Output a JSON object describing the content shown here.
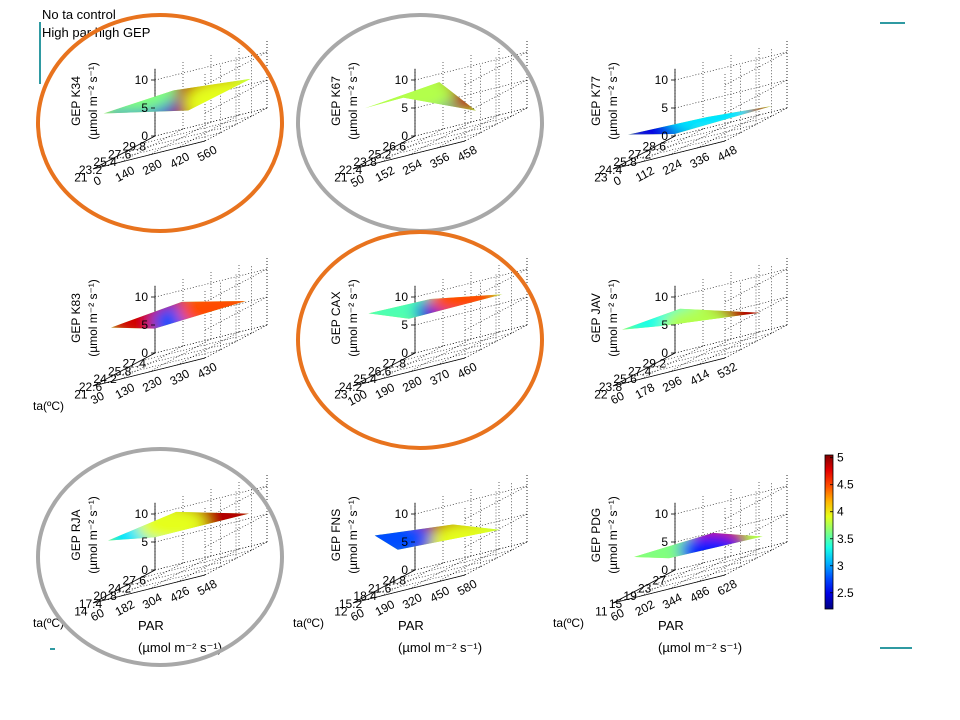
{
  "annotations": {
    "line1": "No ta control",
    "line2": "High par high GEP"
  },
  "colors": {
    "orange_circle": "#e8731e",
    "gray_circle": "#a8a8a8",
    "accent_line": "#2f9aa2"
  },
  "chart_data": [
    {
      "type": "surface3d",
      "site": "K34",
      "zlabel": "GEP K34",
      "zunit": "(µmol m⁻² s⁻¹)",
      "zlim": [
        0,
        10
      ],
      "zticks": [
        "0",
        "5",
        "10"
      ],
      "x_ticks": [
        "29.8",
        "27.6",
        "25.4",
        "23.2",
        "21"
      ],
      "y_ticks": [
        "0",
        "140",
        "280",
        "420",
        "560"
      ],
      "xlabel": "",
      "ylabel": "",
      "circle": "orange"
    },
    {
      "type": "surface3d",
      "site": "K67",
      "zlabel": "GEP K67",
      "zunit": "(µmol m⁻² s⁻¹)",
      "zlim": [
        0,
        10
      ],
      "zticks": [
        "0",
        "5",
        "10"
      ],
      "x_ticks": [
        "26.6",
        "25.2",
        "23.8",
        "22.4",
        "21"
      ],
      "y_ticks": [
        "50",
        "152",
        "254",
        "356",
        "458"
      ],
      "xlabel": "",
      "ylabel": "",
      "circle": "gray"
    },
    {
      "type": "surface3d",
      "site": "K77",
      "zlabel": "GEP K77",
      "zunit": "(µmol m⁻² s⁻¹)",
      "zlim": [
        0,
        10
      ],
      "zticks": [
        "0",
        "5",
        "10"
      ],
      "x_ticks": [
        "28.6",
        "27.2",
        "25.8",
        "24.4",
        "23"
      ],
      "y_ticks": [
        "0",
        "112",
        "224",
        "336",
        "448"
      ],
      "xlabel": "",
      "ylabel": "",
      "circle": "none"
    },
    {
      "type": "surface3d",
      "site": "K83",
      "zlabel": "GEP K83",
      "zunit": "(µmol m⁻² s⁻¹)",
      "zlim": [
        0,
        10
      ],
      "zticks": [
        "0",
        "5",
        "10"
      ],
      "x_ticks": [
        "27.4",
        "25.8",
        "24.2",
        "22.6",
        "21"
      ],
      "y_ticks": [
        "30",
        "130",
        "230",
        "330",
        "430"
      ],
      "xlabel": "ta(ºC)",
      "ylabel": "",
      "circle": "none"
    },
    {
      "type": "surface3d",
      "site": "CAX",
      "zlabel": "GEP CAX",
      "zunit": "(µmol m⁻² s⁻¹)",
      "zlim": [
        0,
        10
      ],
      "zticks": [
        "0",
        "5",
        "10"
      ],
      "x_ticks": [
        "27.8",
        "26.6",
        "25.4",
        "24.2",
        "23"
      ],
      "y_ticks": [
        "100",
        "190",
        "280",
        "370",
        "460"
      ],
      "xlabel": "",
      "ylabel": "",
      "circle": "orange"
    },
    {
      "type": "surface3d",
      "site": "JAV",
      "zlabel": "GEP JAV",
      "zunit": "(µmol m⁻² s⁻¹)",
      "zlim": [
        0,
        10
      ],
      "zticks": [
        "0",
        "5",
        "10"
      ],
      "x_ticks": [
        "29.2",
        "27.4",
        "25.6",
        "23.8",
        "22"
      ],
      "y_ticks": [
        "60",
        "178",
        "296",
        "414",
        "532"
      ],
      "xlabel": "",
      "ylabel": "",
      "circle": "none"
    },
    {
      "type": "surface3d",
      "site": "RJA",
      "zlabel": "GEP RJA",
      "zunit": "(µmol m⁻² s⁻¹)",
      "zlim": [
        0,
        10
      ],
      "zticks": [
        "0",
        "5",
        "10"
      ],
      "x_ticks": [
        "27.6",
        "24.2",
        "20.8",
        "17.4",
        "14"
      ],
      "y_ticks": [
        "60",
        "182",
        "304",
        "426",
        "548"
      ],
      "xlabel": "ta(ºC)",
      "ylabel": "PAR",
      "yunit": "(µmol m⁻² s⁻¹)",
      "circle": "gray"
    },
    {
      "type": "surface3d",
      "site": "FNS",
      "zlabel": "GEP FNS",
      "zunit": "(µmol m⁻² s⁻¹)",
      "zlim": [
        0,
        10
      ],
      "zticks": [
        "0",
        "5",
        "10"
      ],
      "x_ticks": [
        "24.8",
        "21.6",
        "18.4",
        "15.2",
        "12"
      ],
      "y_ticks": [
        "60",
        "190",
        "320",
        "450",
        "580"
      ],
      "xlabel": "ta(ºC)",
      "ylabel": "PAR",
      "yunit": "(µmol m⁻² s⁻¹)",
      "circle": "none"
    },
    {
      "type": "surface3d",
      "site": "PDG",
      "zlabel": "GEP PDG",
      "zunit": "(µmol m⁻² s⁻¹)",
      "zlim": [
        0,
        10
      ],
      "zticks": [
        "0",
        "5",
        "10"
      ],
      "x_ticks": [
        "27",
        "23",
        "19",
        "15",
        "11"
      ],
      "y_ticks": [
        "60",
        "202",
        "344",
        "486",
        "628"
      ],
      "xlabel": "ta(ºC)",
      "ylabel": "PAR",
      "yunit": "(µmol m⁻² s⁻¹)",
      "circle": "none"
    }
  ],
  "colorbar": {
    "min": 2.2,
    "max": 5.05,
    "ticks": [
      "2.5",
      "3",
      "3.5",
      "4",
      "4.5",
      "5"
    ],
    "tick_values": [
      2.5,
      3,
      3.5,
      4,
      4.5,
      5
    ]
  }
}
